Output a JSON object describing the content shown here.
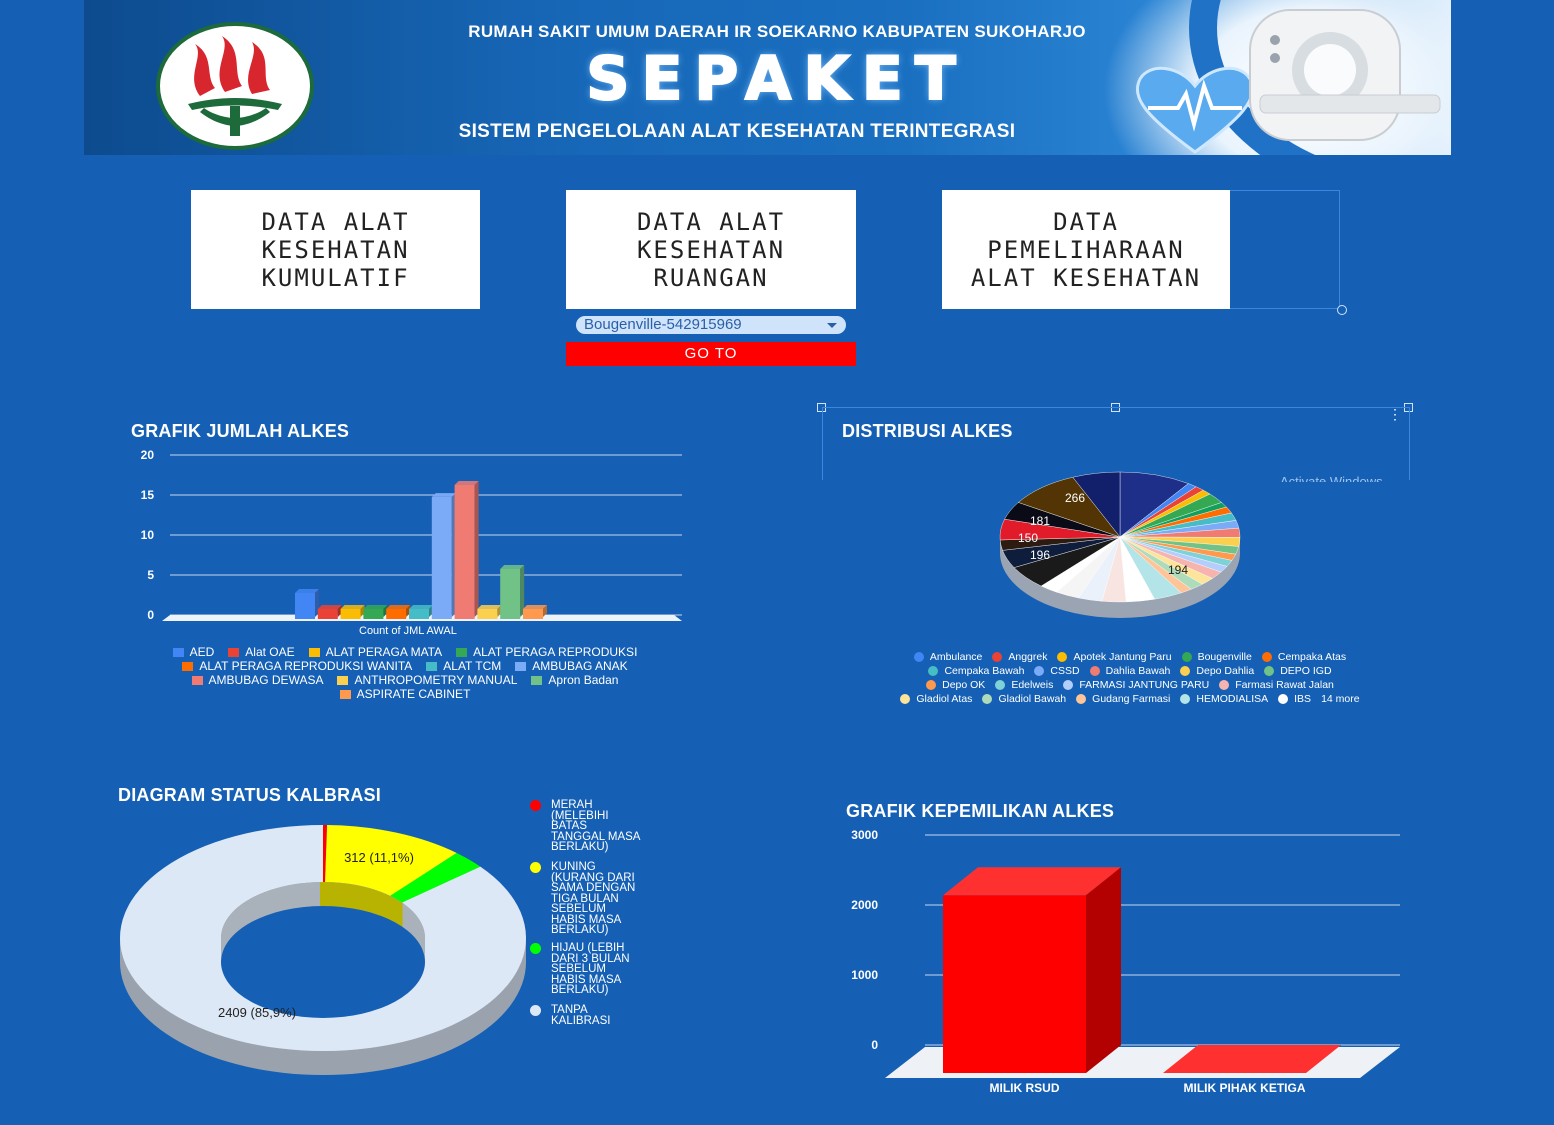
{
  "header": {
    "org": "RUMAH SAKIT UMUM DAERAH IR SOEKARNO KABUPATEN SUKOHARJO",
    "title": "SEPAKET",
    "subtitle": "SISTEM PENGELOLAAN ALAT KESEHATAN TERINTEGRASI"
  },
  "nav": {
    "card1": "DATA ALAT\nKESEHATAN\nKUMULATIF",
    "card2": "DATA ALAT\nKESEHATAN\nRUANGAN",
    "card3": "DATA\nPEMELIHARAAN\nALAT KESEHATAN",
    "room_select": "Bougenville-542915969",
    "goto": "GO TO"
  },
  "chart_data": [
    {
      "type": "bar",
      "title": "GRAFIK JUMLAH ALKES",
      "xlabel": "Count of JML AWAL",
      "ylim": [
        0,
        20
      ],
      "yticks": [
        "20",
        "15",
        "10",
        "5",
        "0"
      ],
      "series": [
        {
          "name": "AED",
          "values": [
            3
          ],
          "color": "#4285f4"
        },
        {
          "name": "Alat OAE",
          "values": [
            1
          ],
          "color": "#ea4335"
        },
        {
          "name": "ALAT PERAGA MATA",
          "values": [
            1
          ],
          "color": "#fbbc04"
        },
        {
          "name": "ALAT PERAGA REPRODUKSI",
          "values": [
            1
          ],
          "color": "#34a853"
        },
        {
          "name": "ALAT PERAGA REPRODUKSI WANITA",
          "values": [
            1
          ],
          "color": "#ff6d01"
        },
        {
          "name": "ALAT TCM",
          "values": [
            1
          ],
          "color": "#46bdc6"
        },
        {
          "name": "AMBUBAG ANAK",
          "values": [
            15
          ],
          "color": "#7baaf7"
        },
        {
          "name": "AMBUBAG DEWASA",
          "values": [
            16.5
          ],
          "color": "#f07b72"
        },
        {
          "name": "ANTHROPOMETRY MANUAL",
          "values": [
            1
          ],
          "color": "#fcd04f"
        },
        {
          "name": "Apron Badan",
          "values": [
            6
          ],
          "color": "#71c287"
        },
        {
          "name": "ASPIRATE CABINET",
          "values": [
            1
          ],
          "color": "#ff994d"
        }
      ]
    },
    {
      "type": "pie",
      "title": "DISTRIBUSI ALKES",
      "labels_shown": [
        "266",
        "181",
        "150",
        "196",
        "194"
      ],
      "legend": [
        {
          "name": "Ambulance",
          "color": "#4285f4"
        },
        {
          "name": "Anggrek",
          "color": "#ea4335"
        },
        {
          "name": "Apotek Jantung Paru",
          "color": "#fbbc04"
        },
        {
          "name": "Bougenville",
          "color": "#34a853"
        },
        {
          "name": "Cempaka Atas",
          "color": "#ff6d01"
        },
        {
          "name": "Cempaka Bawah",
          "color": "#46bdc6"
        },
        {
          "name": "CSSD",
          "color": "#7baaf7"
        },
        {
          "name": "Dahlia Bawah",
          "color": "#f07b72"
        },
        {
          "name": "Depo Dahlia",
          "color": "#fcd04f"
        },
        {
          "name": "DEPO IGD",
          "color": "#71c287"
        },
        {
          "name": "Depo OK",
          "color": "#ff994d"
        },
        {
          "name": "Edelweis",
          "color": "#7ed1d7"
        },
        {
          "name": "FARMASI JANTUNG PARU",
          "color": "#b3cefb"
        },
        {
          "name": "Farmasi Rawat Jalan",
          "color": "#f7b4ae"
        },
        {
          "name": "Gladiol Atas",
          "color": "#fde49b"
        },
        {
          "name": "Gladiol Bawah",
          "color": "#aedcba"
        },
        {
          "name": "Gudang Farmasi",
          "color": "#ffc599"
        },
        {
          "name": "HEMODIALISA",
          "color": "#b2e4e8"
        },
        {
          "name": "IBS",
          "color": "#ffffff"
        }
      ],
      "more": "14 more"
    },
    {
      "type": "pie",
      "title": "DIAGRAM STATUS KALBRASI",
      "slices": [
        {
          "name": "MERAH (MELEBIHI BATAS TANGGAL MASA BERLAKU)",
          "value": 9,
          "color": "#ff0000"
        },
        {
          "name": "KUNING (KURANG DARI SAMA DENGAN TIGA BULAN SEBELUM HABIS MASA BERLAKU)",
          "value": 312,
          "color": "#ffff00"
        },
        {
          "name": "HIJAU (LEBIH DARI 3 BULAN SEBELUM HABIS MASA BERLAKU)",
          "value": 75,
          "color": "#00ff00"
        },
        {
          "name": "TANPA KALIBRASI",
          "value": 2409,
          "color": "#dde8f7"
        }
      ],
      "labels_shown": [
        "312 (11,1%)",
        "2409 (85,9%)"
      ]
    },
    {
      "type": "bar",
      "title": "GRAFIK KEPEMILIKAN ALKES",
      "categories": [
        "MILIK RSUD",
        "MILIK PIHAK KETIGA"
      ],
      "values": [
        2510,
        0
      ],
      "ylim": [
        0,
        3000
      ],
      "yticks": [
        "3000",
        "2000",
        "1000",
        "0"
      ],
      "color": "#ff0000"
    }
  ],
  "calib_legend": [
    {
      "label": "MERAH\n(MELEBIHI\nBATAS\nTANGGAL MASA\nBERLAKU)",
      "color": "#ff0000"
    },
    {
      "label": "KUNING\n(KURANG DARI\nSAMA DENGAN\nTIGA BULAN\nSEBELUM\nHABIS MASA\nBERLAKU)",
      "color": "#ffff00"
    },
    {
      "label": "HIJAU (LEBIH\nDARI 3 BULAN\nSEBELUM\nHABIS MASA\nBERLAKU)",
      "color": "#00ff00"
    },
    {
      "label": "TANPA\nKALIBRASI",
      "color": "#dde8f7"
    }
  ],
  "watermark": "Activate Windows"
}
